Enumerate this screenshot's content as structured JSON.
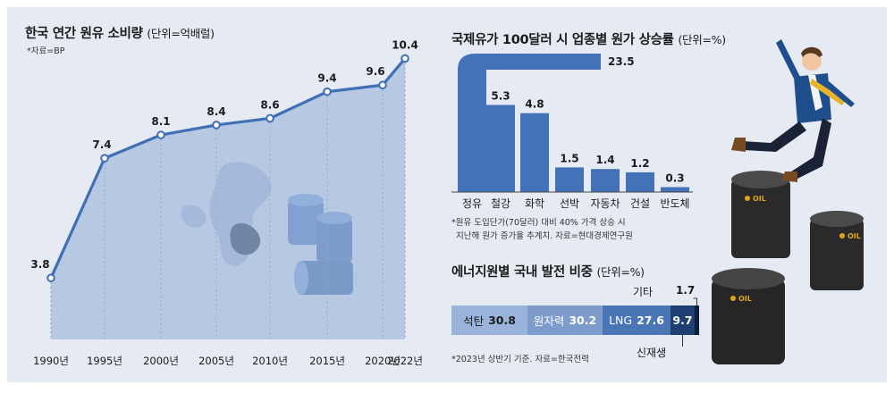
{
  "line_chart": {
    "title": "한국 연간 원유 소비량",
    "unit": "(단위=억배럴)",
    "source": "*자료=BP"
  },
  "bar_chart": {
    "title": "국제유가 100달러 시 업종별 원가 상승률",
    "unit": "(단위=%)",
    "note_line1": "*원유 도입단가(70달러) 대비 40% 가격 상승 시",
    "note_line2": "지난해 원가 증가율 추계치. 자료=현대경제연구원"
  },
  "stacked_bar": {
    "title": "에너지원별 국내 발전 비중",
    "unit": "(단위=%)",
    "note": "*2023년 상반기 기준. 자료=한국전력"
  },
  "colors": {
    "line": "#3f6fb4",
    "area": "#9db6d9",
    "bar": "#4472b8",
    "bg": "#e6ebf3"
  },
  "chart_data": [
    {
      "type": "area",
      "title": "한국 연간 원유 소비량",
      "unit": "억배럴",
      "x": [
        "1990년",
        "1995년",
        "2000년",
        "2005년",
        "2010년",
        "2015년",
        "2020년",
        "2022년"
      ],
      "values": [
        3.8,
        7.4,
        8.1,
        8.4,
        8.6,
        9.4,
        9.6,
        10.4
      ],
      "value_labels": [
        "3.8",
        "7.4",
        "8.1",
        "8.4",
        "8.6",
        "9.4",
        "9.6",
        "10.4"
      ],
      "ylim": [
        3.0,
        10.6
      ]
    },
    {
      "type": "bar",
      "title": "국제유가 100달러 시 업종별 원가 상승률",
      "unit": "%",
      "categories": [
        "정유",
        "철강",
        "화학",
        "선박",
        "자동차",
        "건설",
        "반도체"
      ],
      "values": [
        23.5,
        5.3,
        4.8,
        1.5,
        1.4,
        1.2,
        0.3
      ],
      "value_labels": [
        "23.5",
        "5.3",
        "4.8",
        "1.5",
        "1.4",
        "1.2",
        "0.3"
      ],
      "note": "정유 bar is drawn broken (truncated and bent to the right)"
    },
    {
      "type": "bar",
      "orientation": "horizontal-stacked",
      "title": "에너지원별 국내 발전 비중",
      "unit": "%",
      "categories": [
        "석탄",
        "원자력",
        "LNG",
        "신재생",
        "기타"
      ],
      "values": [
        30.8,
        30.2,
        27.6,
        9.7,
        1.7
      ],
      "value_labels": [
        "30.8",
        "30.2",
        "27.6",
        "9.7",
        "1.7"
      ],
      "segment_colors": [
        "#9ab3da",
        "#7d9bcb",
        "#4a76b6",
        "#1f3f73",
        "#0d1f3c"
      ]
    }
  ]
}
